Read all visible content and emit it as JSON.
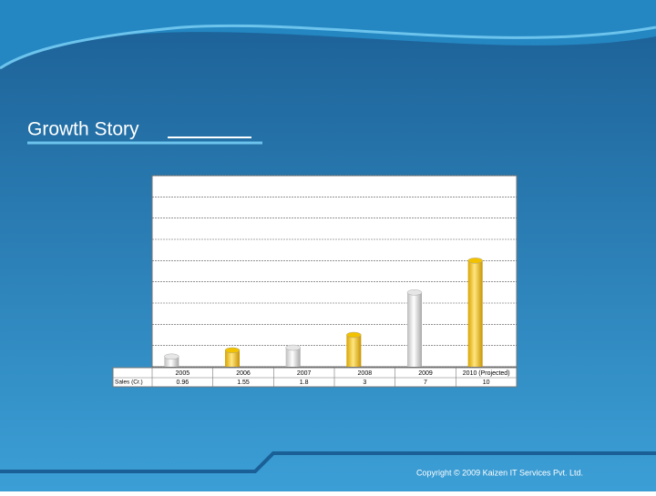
{
  "title": "Growth Story",
  "footer": "Copyright © 2009 Kaizen IT Services Pvt. Ltd.",
  "chart_data": {
    "type": "bar",
    "categories": [
      "2005",
      "2006",
      "2007",
      "2008",
      "2009",
      "2010 (Projected)"
    ],
    "series": [
      {
        "name": "Sales (Cr.)",
        "values": [
          0.96,
          1.55,
          1.8,
          3,
          7,
          10
        ]
      }
    ],
    "colors": [
      "#e6e6e6",
      "#f2c200",
      "#e6e6e6",
      "#f2c200",
      "#e6e6e6",
      "#f2c200"
    ],
    "ylim": [
      0,
      18
    ],
    "yticks": [
      0,
      2,
      4,
      6,
      8,
      10,
      12,
      14,
      16,
      18
    ],
    "grid": true
  }
}
